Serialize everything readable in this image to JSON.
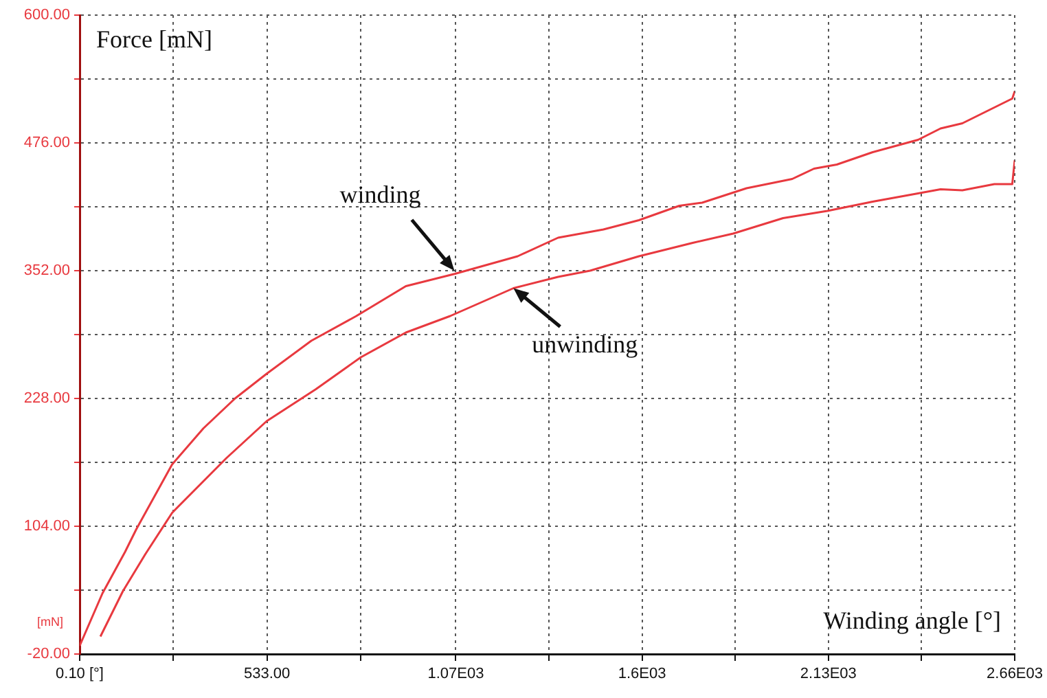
{
  "chart_data": {
    "type": "line",
    "ylabel": "Force [mN]",
    "xlabel": "Winding angle [°]",
    "xlim": [
      0.1,
      2660
    ],
    "ylim": [
      -20,
      600
    ],
    "xticks": [
      {
        "value": 0.1,
        "label": "0.10 [°]"
      },
      {
        "value": 266,
        "label": null
      },
      {
        "value": 533,
        "label": "533.00"
      },
      {
        "value": 800,
        "label": null
      },
      {
        "value": 1070,
        "label": "1.07E03"
      },
      {
        "value": 1335,
        "label": null
      },
      {
        "value": 1600,
        "label": "1.6E03"
      },
      {
        "value": 1865,
        "label": null
      },
      {
        "value": 2130,
        "label": "2.13E03"
      },
      {
        "value": 2395,
        "label": null
      },
      {
        "value": 2660,
        "label": "2.66E03"
      }
    ],
    "yticks": [
      {
        "value": -20,
        "label": "-20.00"
      },
      {
        "value": 42,
        "label": null
      },
      {
        "value": 104,
        "label": "104.00"
      },
      {
        "value": 166,
        "label": null
      },
      {
        "value": 228,
        "label": "228.00"
      },
      {
        "value": 290,
        "label": null
      },
      {
        "value": 352,
        "label": "352.00"
      },
      {
        "value": 414,
        "label": null
      },
      {
        "value": 476,
        "label": "476.00"
      },
      {
        "value": 538,
        "label": null
      },
      {
        "value": 600,
        "label": "600.00"
      }
    ],
    "grid": true,
    "legend": false,
    "marker": "none",
    "line_style": "solid",
    "series": [
      {
        "color": "#e8393f",
        "x": [
          0.1,
          65,
          129,
          161,
          263,
          352,
          442,
          532,
          659,
          787,
          928,
          1068,
          1246,
          1361,
          1490,
          1591,
          1706,
          1771,
          1897,
          2027,
          2089,
          2154,
          2256,
          2385,
          2449,
          2511,
          2653,
          2660
        ],
        "values": [
          -12,
          39,
          79,
          101,
          164,
          199,
          228,
          252,
          284,
          308,
          337,
          349,
          366,
          384,
          392,
          401,
          415,
          418,
          432,
          441,
          451,
          455,
          467,
          479,
          490,
          495,
          519,
          526
        ]
      },
      {
        "color": "#e8393f",
        "x": [
          59,
          123,
          187,
          263,
          417,
          532,
          672,
          800,
          928,
          1054,
          1234,
          1361,
          1452,
          1591,
          1744,
          1859,
          2001,
          2127,
          2256,
          2385,
          2449,
          2511,
          2602,
          2653,
          2660
        ],
        "values": [
          -3,
          41,
          77,
          117,
          170,
          206,
          237,
          268,
          292,
          308,
          335,
          346,
          352,
          366,
          379,
          388,
          403,
          410,
          419,
          427,
          431,
          430,
          436,
          436,
          459
        ]
      }
    ],
    "annotations": [
      "[mN]",
      {
        "text": "winding",
        "x": 1066,
        "y": 352
      },
      {
        "text": "unwinding",
        "x": 1234,
        "y": 335
      }
    ]
  }
}
